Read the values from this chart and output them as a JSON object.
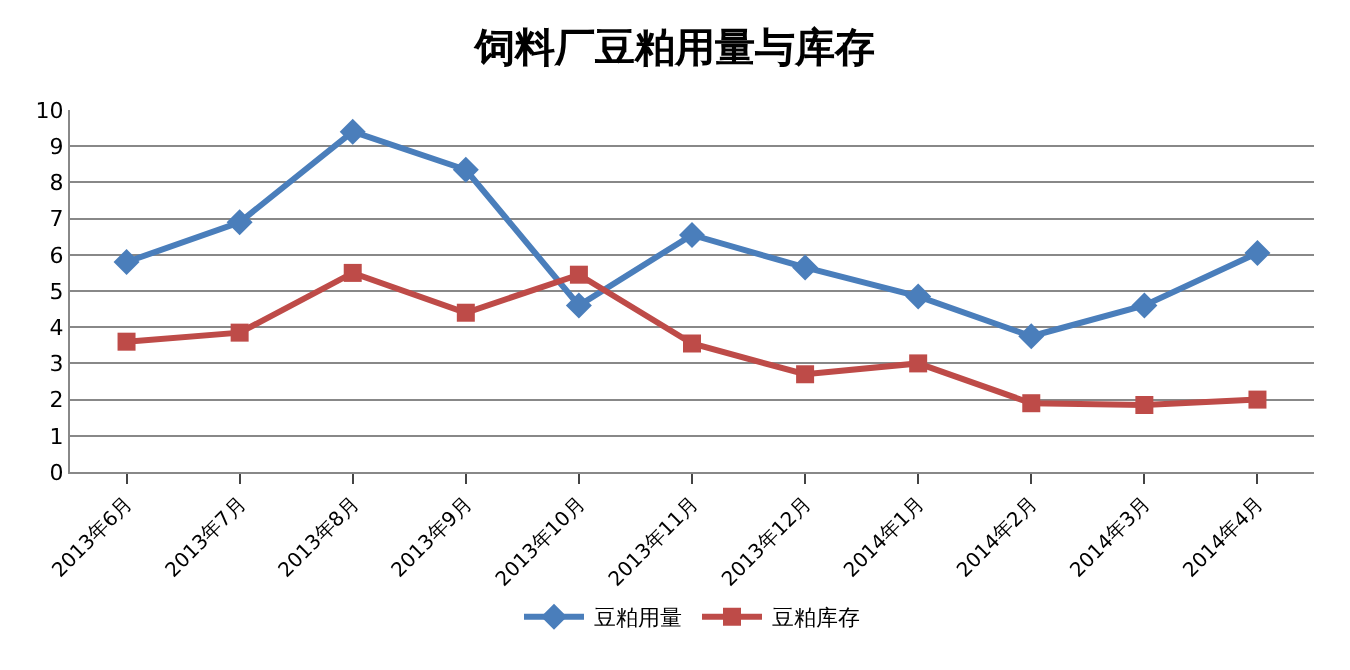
{
  "chart_data": {
    "type": "line",
    "title": "饲料厂豆粕用量与库存",
    "categories": [
      "2013年6月",
      "2013年7月",
      "2013年8月",
      "2013年9月",
      "2013年10月",
      "2013年11月",
      "2013年12月",
      "2014年1月",
      "2014年2月",
      "2014年3月",
      "2014年4月"
    ],
    "series": [
      {
        "name": "豆粕用量",
        "color": "#4a7ebb",
        "marker": "diamond",
        "values": [
          5.8,
          6.9,
          9.4,
          8.35,
          4.6,
          6.55,
          5.65,
          4.85,
          3.75,
          4.6,
          6.05
        ]
      },
      {
        "name": "豆粕库存",
        "color": "#be4b48",
        "marker": "square",
        "values": [
          3.6,
          3.85,
          5.5,
          4.4,
          5.45,
          3.55,
          2.7,
          3.0,
          1.9,
          1.85,
          2.0
        ]
      }
    ],
    "ylim": [
      0,
      10
    ],
    "yticks": [
      0,
      1,
      2,
      3,
      4,
      5,
      6,
      7,
      8,
      9,
      10
    ],
    "grid": "y",
    "legend": "bottom",
    "line_style": "solid"
  }
}
